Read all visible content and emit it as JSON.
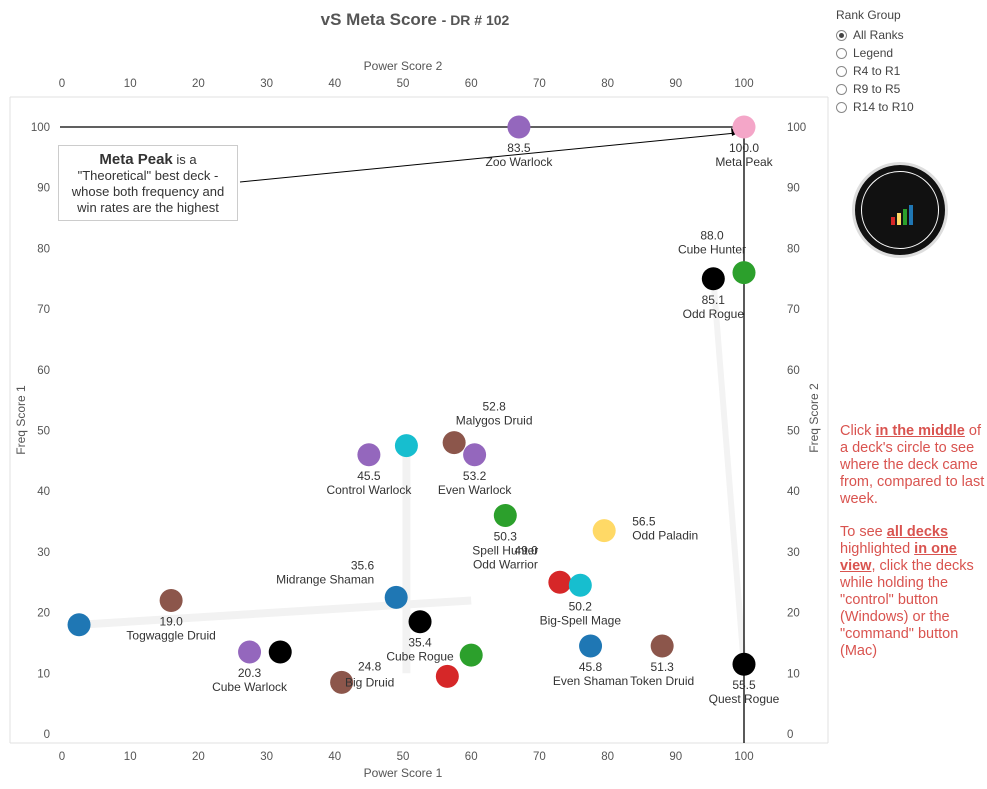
{
  "title": {
    "main": "vS Meta Score",
    "dr": "DR # 102"
  },
  "rank_group": {
    "title": "Rank Group",
    "options": [
      "All Ranks",
      "Legend",
      "R4 to R1",
      "R9 to R5",
      "R14 to R10"
    ],
    "selected": 0
  },
  "annotation": {
    "bold": "Meta Peak",
    "text_1": " is a",
    "text_2": "\"Theoretical\" best deck -",
    "text_3": "whose both frequency and",
    "text_4": "win rates are the highest"
  },
  "instructions": {
    "p1_a": "Click ",
    "p1_b": "in the middle",
    "p1_c": " of a deck's circle to see where the deck came from, compared to last week.",
    "p2_a": "To see ",
    "p2_b": "all decks",
    "p2_c": " highlighted ",
    "p2_d": "in one view",
    "p2_e": ", click the decks while holding the \"control\" button (Windows) or the \"command\" button (Mac)"
  },
  "colors": {
    "purple": "#9467bd",
    "pink": "#f4a6c8",
    "black": "#000000",
    "green": "#2ca02c",
    "brown": "#8c564b",
    "cyan": "#17becf",
    "blue": "#1f77b4",
    "red": "#d62728",
    "yellow": "#ffd966"
  },
  "chart_data": {
    "type": "scatter",
    "xlabel": "Power Score 1",
    "x2label": "Power Score 2",
    "ylabel": "Freq Score 1",
    "y2label": "Freq Score 2",
    "xlim": [
      0,
      100
    ],
    "ylim": [
      0,
      100
    ],
    "xticks": [
      "0",
      "10",
      "20",
      "30",
      "40",
      "50",
      "60",
      "70",
      "80",
      "90",
      "100"
    ],
    "yticks": [
      "0",
      "10",
      "20",
      "30",
      "40",
      "50",
      "60",
      "70",
      "80",
      "90",
      "100"
    ],
    "points": [
      {
        "x": 67,
        "y": 100,
        "color": "purple",
        "score": "83.5",
        "name": "Zoo Warlock",
        "labelPos": "below"
      },
      {
        "x": 100,
        "y": 100,
        "color": "pink",
        "score": "100.0",
        "name": "Meta Peak",
        "labelPos": "below"
      },
      {
        "x": 95.5,
        "y": 75,
        "color": "black",
        "score": "85.1",
        "name": "Odd Rogue",
        "labelPos": "below"
      },
      {
        "x": 100,
        "y": 76,
        "color": "green",
        "score": "88.0",
        "name": "Cube Hunter",
        "labelPos": "above-left"
      },
      {
        "x": 57.5,
        "y": 48,
        "color": "brown",
        "score": "52.8",
        "name": "Malygos Druid",
        "labelPos": "above-right"
      },
      {
        "x": 50.5,
        "y": 47.5,
        "color": "cyan",
        "score": "",
        "name": "",
        "labelPos": "none"
      },
      {
        "x": 45,
        "y": 46,
        "color": "purple",
        "score": "45.5",
        "name": "Control Warlock",
        "labelPos": "below"
      },
      {
        "x": 60.5,
        "y": 46,
        "color": "purple",
        "score": "53.2",
        "name": "Even Warlock",
        "labelPos": "below"
      },
      {
        "x": 65,
        "y": 36,
        "color": "green",
        "score": "50.3",
        "name": "Spell Hunter",
        "labelPos": "below"
      },
      {
        "x": 79.5,
        "y": 33.5,
        "color": "yellow",
        "score": "56.5",
        "name": "Odd Paladin",
        "labelPos": "right"
      },
      {
        "x": 73,
        "y": 25,
        "color": "red",
        "score": "49.0",
        "name": "Odd Warrior",
        "labelPos": "above-left"
      },
      {
        "x": 76,
        "y": 24.5,
        "color": "cyan",
        "score": "50.2",
        "name": "Big-Spell Mage",
        "labelPos": "below"
      },
      {
        "x": 49,
        "y": 22.5,
        "color": "blue",
        "score": "35.6",
        "name": "Midrange Shaman",
        "labelPos": "above-left"
      },
      {
        "x": 16,
        "y": 22,
        "color": "brown",
        "score": "19.0",
        "name": "Togwaggle Druid",
        "labelPos": "below"
      },
      {
        "x": 2.5,
        "y": 18,
        "color": "blue",
        "score": "",
        "name": "",
        "labelPos": "none"
      },
      {
        "x": 52.5,
        "y": 18.5,
        "color": "black",
        "score": "35.4",
        "name": "Cube Rogue",
        "labelPos": "below"
      },
      {
        "x": 77.5,
        "y": 14.5,
        "color": "blue",
        "score": "45.8",
        "name": "Even Shaman",
        "labelPos": "below"
      },
      {
        "x": 88,
        "y": 14.5,
        "color": "brown",
        "score": "51.3",
        "name": "Token Druid",
        "labelPos": "below"
      },
      {
        "x": 27.5,
        "y": 13.5,
        "color": "purple",
        "score": "20.3",
        "name": "Cube Warlock",
        "labelPos": "below"
      },
      {
        "x": 32,
        "y": 13.5,
        "color": "black",
        "score": "",
        "name": "",
        "labelPos": "none"
      },
      {
        "x": 60,
        "y": 13,
        "color": "green",
        "score": "",
        "name": "",
        "labelPos": "none"
      },
      {
        "x": 100,
        "y": 11.5,
        "color": "black",
        "score": "55.5",
        "name": "Quest Rogue",
        "labelPos": "below"
      },
      {
        "x": 56.5,
        "y": 9.5,
        "color": "red",
        "score": "",
        "name": "",
        "labelPos": "none"
      },
      {
        "x": 41,
        "y": 8.5,
        "color": "brown",
        "score": "24.8",
        "name": "Big Druid",
        "labelPos": "above-right"
      }
    ]
  }
}
